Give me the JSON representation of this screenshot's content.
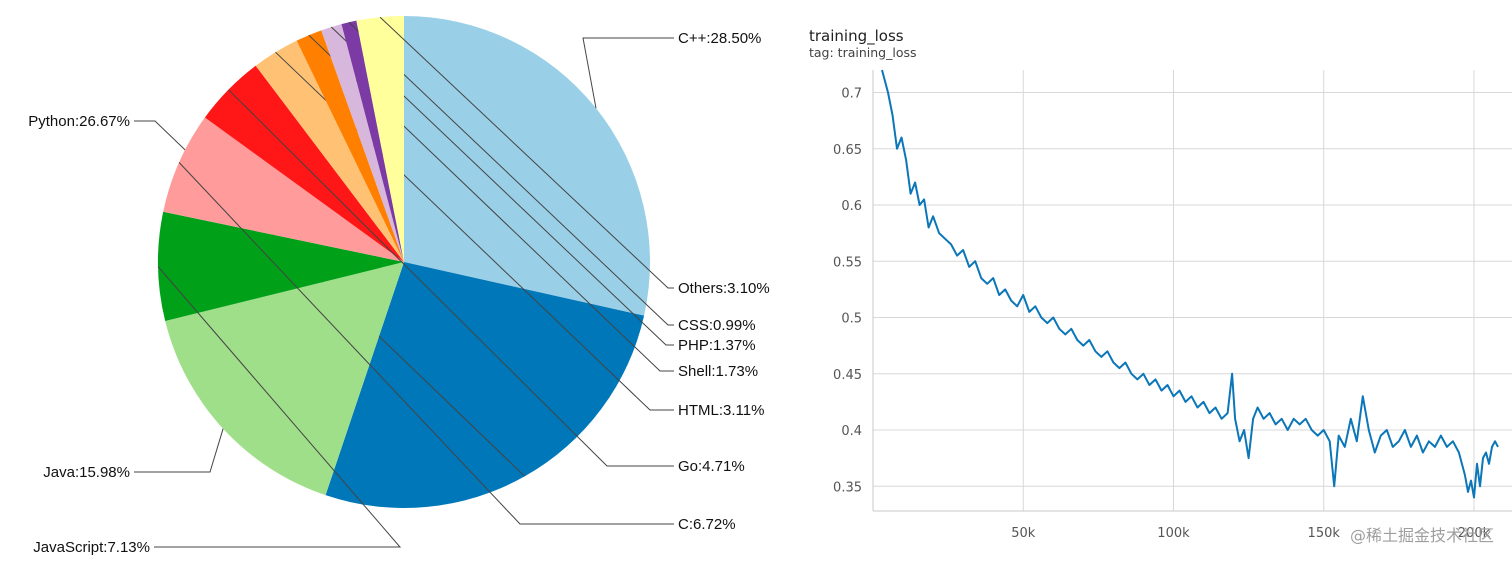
{
  "chart_data": [
    {
      "type": "pie",
      "title": "",
      "slices": [
        {
          "label": "C++:28.50%",
          "name": "C++",
          "value": 28.5,
          "color": "#9ad0e7"
        },
        {
          "label": "Python:26.67%",
          "name": "Python",
          "value": 26.67,
          "color": "#0077b8"
        },
        {
          "label": "Java:15.98%",
          "name": "Java",
          "value": 15.98,
          "color": "#a0df8a"
        },
        {
          "label": "JavaScript:7.13%",
          "name": "JavaScript",
          "value": 7.13,
          "color": "#00a119"
        },
        {
          "label": "C:6.72%",
          "name": "C",
          "value": 6.72,
          "color": "#ff9b9b"
        },
        {
          "label": "Go:4.71%",
          "name": "Go",
          "value": 4.71,
          "color": "#ff1616"
        },
        {
          "label": "HTML:3.11%",
          "name": "HTML",
          "value": 3.11,
          "color": "#ffc274"
        },
        {
          "label": "Shell:1.73%",
          "name": "Shell",
          "value": 1.73,
          "color": "#ff8000"
        },
        {
          "label": "PHP:1.37%",
          "name": "PHP",
          "value": 1.37,
          "color": "#d8b7dd"
        },
        {
          "label": "CSS:0.99%",
          "name": "CSS",
          "value": 0.99,
          "color": "#7c3aa4"
        },
        {
          "label": "Others:3.10%",
          "name": "Others",
          "value": 3.1,
          "color": "#ffff9b"
        }
      ]
    },
    {
      "type": "line",
      "title": "training_loss",
      "subtitle": "tag: training_loss",
      "xlabel": "",
      "ylabel": "",
      "xlim": [
        0,
        208000
      ],
      "ylim": [
        0.328,
        0.72
      ],
      "x_ticks": [
        {
          "value": 50000,
          "label": "50k"
        },
        {
          "value": 100000,
          "label": "100k"
        },
        {
          "value": 150000,
          "label": "150k"
        },
        {
          "value": 200000,
          "label": "200k"
        }
      ],
      "y_ticks": [
        {
          "value": 0.35,
          "label": "0.35"
        },
        {
          "value": 0.4,
          "label": "0.4"
        },
        {
          "value": 0.45,
          "label": "0.45"
        },
        {
          "value": 0.5,
          "label": "0.5"
        },
        {
          "value": 0.55,
          "label": "0.55"
        },
        {
          "value": 0.6,
          "label": "0.6"
        },
        {
          "value": 0.65,
          "label": "0.65"
        },
        {
          "value": 0.7,
          "label": "0.7"
        }
      ],
      "grid": true,
      "series": [
        {
          "color": "#0b76b8",
          "points": [
            [
              3000,
              0.72
            ],
            [
              5000,
              0.7
            ],
            [
              6500,
              0.68
            ],
            [
              8000,
              0.65
            ],
            [
              9500,
              0.66
            ],
            [
              11000,
              0.64
            ],
            [
              12500,
              0.61
            ],
            [
              14000,
              0.62
            ],
            [
              15500,
              0.6
            ],
            [
              17000,
              0.605
            ],
            [
              18500,
              0.58
            ],
            [
              20000,
              0.59
            ],
            [
              22000,
              0.575
            ],
            [
              24000,
              0.57
            ],
            [
              26000,
              0.565
            ],
            [
              28000,
              0.555
            ],
            [
              30000,
              0.56
            ],
            [
              32000,
              0.545
            ],
            [
              34000,
              0.55
            ],
            [
              36000,
              0.535
            ],
            [
              38000,
              0.53
            ],
            [
              40000,
              0.535
            ],
            [
              42000,
              0.52
            ],
            [
              44000,
              0.525
            ],
            [
              46000,
              0.515
            ],
            [
              48000,
              0.51
            ],
            [
              50000,
              0.52
            ],
            [
              52000,
              0.505
            ],
            [
              54000,
              0.51
            ],
            [
              56000,
              0.5
            ],
            [
              58000,
              0.495
            ],
            [
              60000,
              0.5
            ],
            [
              62000,
              0.49
            ],
            [
              64000,
              0.485
            ],
            [
              66000,
              0.49
            ],
            [
              68000,
              0.48
            ],
            [
              70000,
              0.475
            ],
            [
              72000,
              0.48
            ],
            [
              74000,
              0.47
            ],
            [
              76000,
              0.465
            ],
            [
              78000,
              0.47
            ],
            [
              80000,
              0.46
            ],
            [
              82000,
              0.455
            ],
            [
              84000,
              0.46
            ],
            [
              86000,
              0.45
            ],
            [
              88000,
              0.445
            ],
            [
              90000,
              0.45
            ],
            [
              92000,
              0.44
            ],
            [
              94000,
              0.445
            ],
            [
              96000,
              0.435
            ],
            [
              98000,
              0.44
            ],
            [
              100000,
              0.43
            ],
            [
              102000,
              0.435
            ],
            [
              104000,
              0.425
            ],
            [
              106000,
              0.43
            ],
            [
              108000,
              0.42
            ],
            [
              110000,
              0.425
            ],
            [
              112000,
              0.415
            ],
            [
              114000,
              0.42
            ],
            [
              116000,
              0.41
            ],
            [
              118000,
              0.415
            ],
            [
              119500,
              0.45
            ],
            [
              120500,
              0.41
            ],
            [
              122000,
              0.39
            ],
            [
              123500,
              0.4
            ],
            [
              125000,
              0.375
            ],
            [
              126500,
              0.41
            ],
            [
              128000,
              0.42
            ],
            [
              130000,
              0.41
            ],
            [
              132000,
              0.415
            ],
            [
              134000,
              0.405
            ],
            [
              136000,
              0.41
            ],
            [
              138000,
              0.4
            ],
            [
              140000,
              0.41
            ],
            [
              142000,
              0.405
            ],
            [
              144000,
              0.41
            ],
            [
              146000,
              0.4
            ],
            [
              148000,
              0.395
            ],
            [
              150000,
              0.4
            ],
            [
              152000,
              0.39
            ],
            [
              153500,
              0.35
            ],
            [
              155000,
              0.395
            ],
            [
              157000,
              0.385
            ],
            [
              159000,
              0.41
            ],
            [
              161000,
              0.39
            ],
            [
              163000,
              0.43
            ],
            [
              165000,
              0.4
            ],
            [
              167000,
              0.38
            ],
            [
              169000,
              0.395
            ],
            [
              171000,
              0.4
            ],
            [
              173000,
              0.385
            ],
            [
              175000,
              0.39
            ],
            [
              177000,
              0.4
            ],
            [
              179000,
              0.385
            ],
            [
              181000,
              0.395
            ],
            [
              183000,
              0.38
            ],
            [
              185000,
              0.39
            ],
            [
              187000,
              0.385
            ],
            [
              189000,
              0.395
            ],
            [
              191000,
              0.385
            ],
            [
              193000,
              0.39
            ],
            [
              195000,
              0.38
            ],
            [
              197000,
              0.36
            ],
            [
              198000,
              0.345
            ],
            [
              199000,
              0.355
            ],
            [
              200000,
              0.34
            ],
            [
              201000,
              0.37
            ],
            [
              202000,
              0.35
            ],
            [
              203000,
              0.375
            ],
            [
              204000,
              0.38
            ],
            [
              205000,
              0.37
            ],
            [
              206000,
              0.385
            ],
            [
              207000,
              0.39
            ],
            [
              208000,
              0.385
            ]
          ]
        }
      ]
    }
  ],
  "watermark": "@稀土掘金技术社区"
}
